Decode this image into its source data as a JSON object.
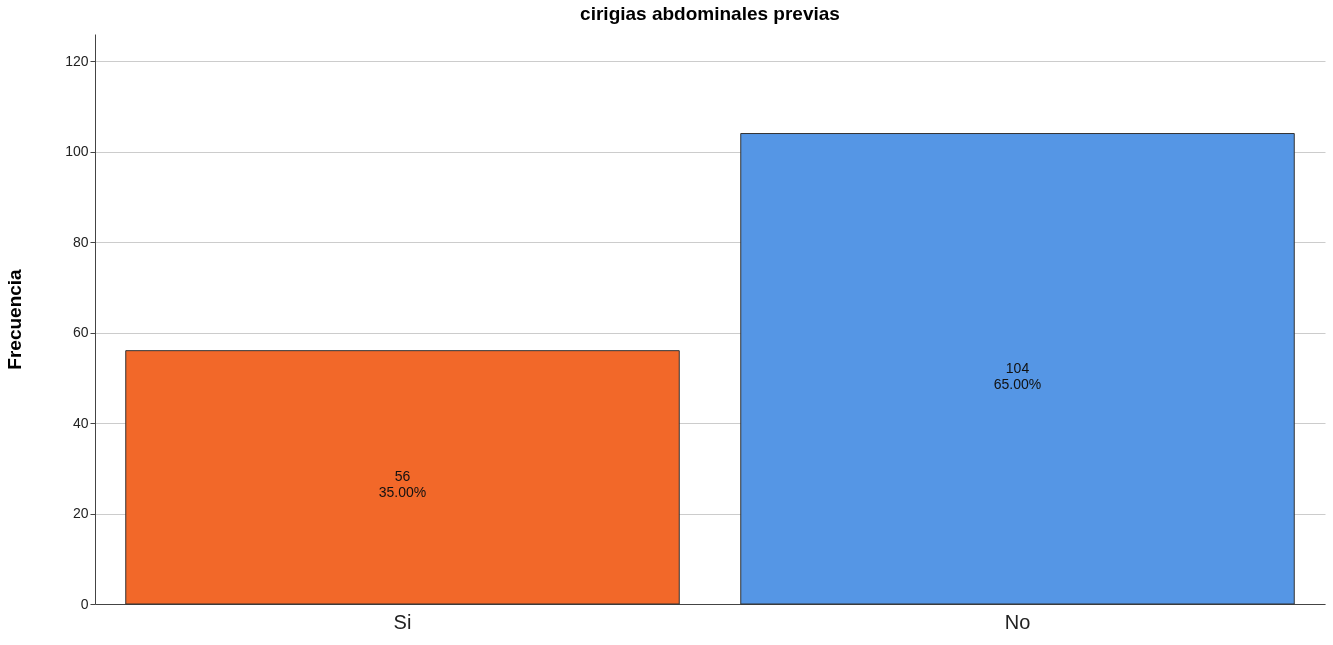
{
  "chart_data": {
    "type": "bar",
    "title": "cirigias abdominales previas",
    "ylabel": "Frecuencia",
    "categories": [
      "Si",
      "No"
    ],
    "values": [
      56,
      104
    ],
    "colors": [
      "#f26829",
      "#5596e5"
    ],
    "value_labels": [
      "56\n35.00%",
      "104\n65.00%"
    ],
    "ylim": [
      0,
      126
    ],
    "yticks": [
      0,
      20,
      40,
      60,
      80,
      100,
      120
    ],
    "grid": "y"
  }
}
